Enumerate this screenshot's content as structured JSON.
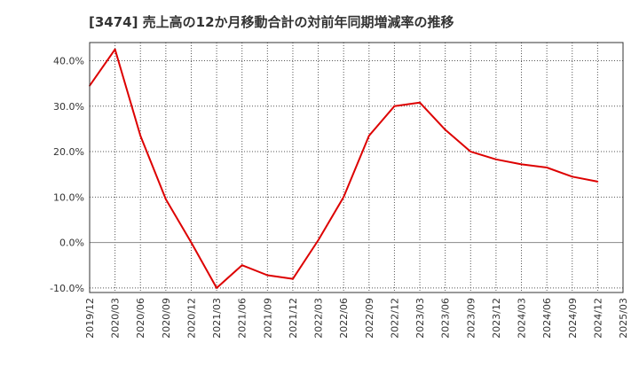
{
  "chart_data": {
    "type": "line",
    "title": "[3474]  売上高の12か月移動合計の対前年同期増減率の推移",
    "xlabel": "",
    "ylabel": "",
    "x": [
      "2019/12",
      "2020/03",
      "2020/06",
      "2020/09",
      "2020/12",
      "2021/03",
      "2021/06",
      "2021/09",
      "2021/12",
      "2022/03",
      "2022/06",
      "2022/09",
      "2022/12",
      "2023/03",
      "2023/06",
      "2023/09",
      "2023/12",
      "2024/03",
      "2024/06",
      "2024/09",
      "2024/12",
      "2025/03"
    ],
    "series": [
      {
        "name": "対前年同期増減率",
        "color": "#dd0000",
        "values": [
          34.5,
          42.5,
          23.5,
          9.5,
          0.0,
          -10.0,
          -5.0,
          -7.2,
          -8.0,
          0.5,
          10.0,
          23.5,
          30.0,
          30.8,
          24.8,
          20.0,
          18.3,
          17.2,
          16.5,
          14.5,
          13.4,
          null
        ]
      }
    ],
    "yticks": [
      -10,
      0,
      10,
      20,
      30,
      40
    ],
    "yticklabels": [
      "-10.0%",
      "0.0%",
      "10.0%",
      "20.0%",
      "30.0%",
      "40.0%"
    ],
    "ylim": [
      -11,
      44
    ],
    "grid": true,
    "colors": {
      "line": "#dd0000",
      "grid": "#555555",
      "zero_line": "#888888",
      "axis": "#333333"
    }
  }
}
